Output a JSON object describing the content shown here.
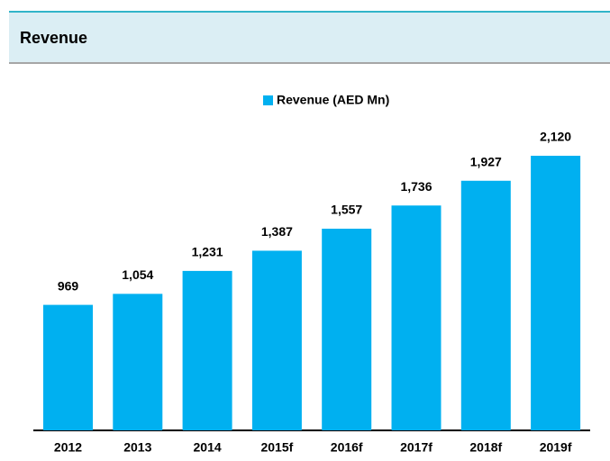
{
  "header": {
    "title": "Revenue"
  },
  "chart_data": {
    "type": "bar",
    "categories": [
      "2012",
      "2013",
      "2014",
      "2015f",
      "2016f",
      "2017f",
      "2018f",
      "2019f"
    ],
    "series": [
      {
        "name": "Revenue (AED Mn)",
        "color": "#00b0f0",
        "values": [
          969,
          1054,
          1231,
          1387,
          1557,
          1736,
          1927,
          2120
        ],
        "value_labels": [
          "969",
          "1,054",
          "1,231",
          "1,387",
          "1,557",
          "1,736",
          "1,927",
          "2,120"
        ]
      }
    ],
    "legend": "top"
  }
}
